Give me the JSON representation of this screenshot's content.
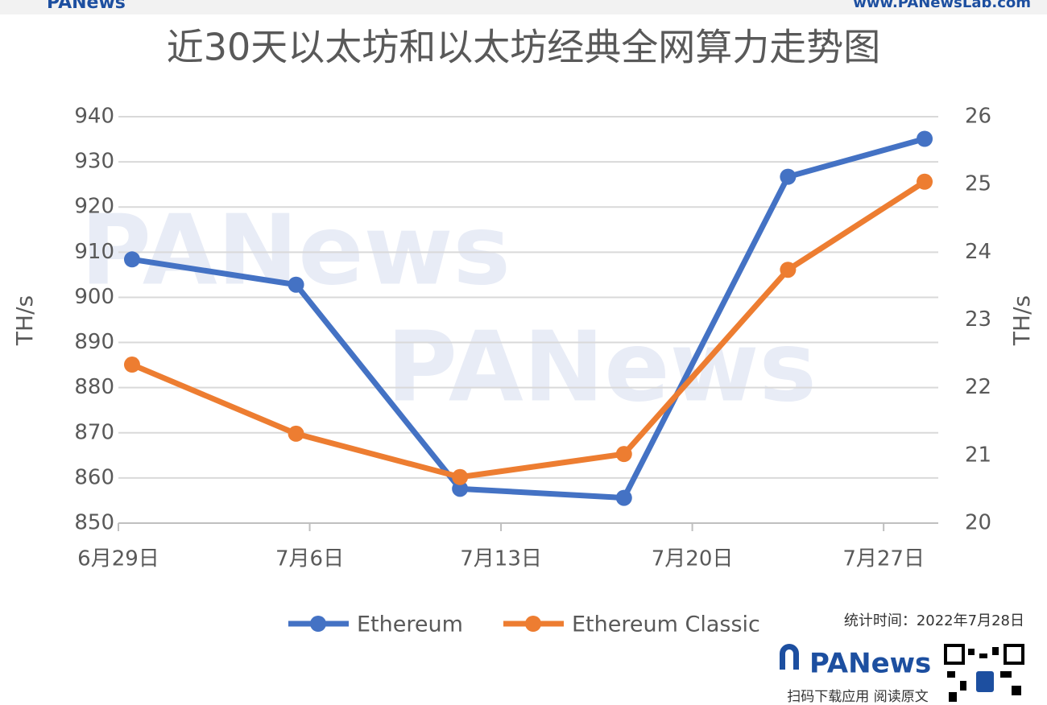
{
  "header": {
    "logo": "PANews",
    "url": "www.PANewsLab.com"
  },
  "watermarks": [
    "PANews",
    "PANews"
  ],
  "chart_data": {
    "type": "line",
    "title": "近30天以太坊和以太坊经典全网算力走势图",
    "x": [
      "6月29日",
      "7月5日",
      "7月11日",
      "7月17日",
      "7月23日",
      "7月28日"
    ],
    "xlim": [
      "6月29日",
      "7月29日"
    ],
    "xticks": [
      "6月29日",
      "7月6日",
      "7月13日",
      "7月20日",
      "7月27日"
    ],
    "ylim": [
      850,
      940
    ],
    "yticks": [
      850,
      860,
      870,
      880,
      890,
      900,
      910,
      920,
      930,
      940
    ],
    "y2lim": [
      20,
      26
    ],
    "y2ticks": [
      20,
      21,
      22,
      23,
      24,
      25,
      26
    ],
    "ylabel": "TH/s",
    "y2label": "TH/s",
    "grid": true,
    "legend": "bottom",
    "series": [
      {
        "name": "Ethereum",
        "color": "#4472c4",
        "values": [
          908.4,
          902.8,
          857.6,
          855.6,
          926.7,
          935.1
        ]
      },
      {
        "name": "Ethereum Classic",
        "color": "#ed7d31",
        "axis": "y2",
        "values": [
          22.34,
          21.32,
          20.68,
          21.02,
          23.74,
          25.04
        ]
      }
    ]
  },
  "footer": {
    "note": "统计时间：2022年7月28日",
    "logo": "PANews",
    "caption": "扫码下载应用 阅读原文"
  }
}
